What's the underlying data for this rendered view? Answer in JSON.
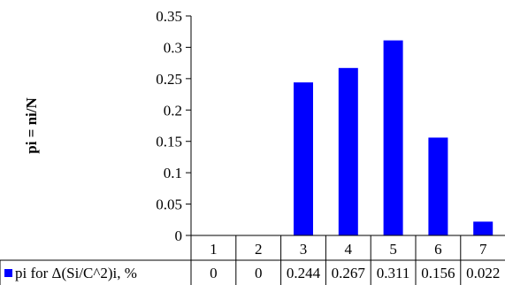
{
  "chart_data": {
    "type": "bar",
    "ylabel": "pi = ni/N",
    "categories": [
      "1",
      "2",
      "3",
      "4",
      "5",
      "6",
      "7"
    ],
    "series": [
      {
        "name": "pi for Δ(Si/C^2)i, %",
        "color": "#0000ff",
        "values": [
          0,
          0,
          0.244,
          0.267,
          0.311,
          0.156,
          0.022
        ],
        "value_labels": [
          "0",
          "0",
          "0.244",
          "0.267",
          "0.311",
          "0.156",
          "0.022"
        ]
      }
    ],
    "ylim": [
      0,
      0.35
    ],
    "yticks": [
      0,
      0.05,
      0.1,
      0.15,
      0.2,
      0.25,
      0.3,
      0.35
    ],
    "ytick_labels": [
      "0",
      "0.05",
      "0.1",
      "0.15",
      "0.2",
      "0.25",
      "0.3",
      "0.35"
    ],
    "grid": false,
    "legend": "data-table-left"
  }
}
